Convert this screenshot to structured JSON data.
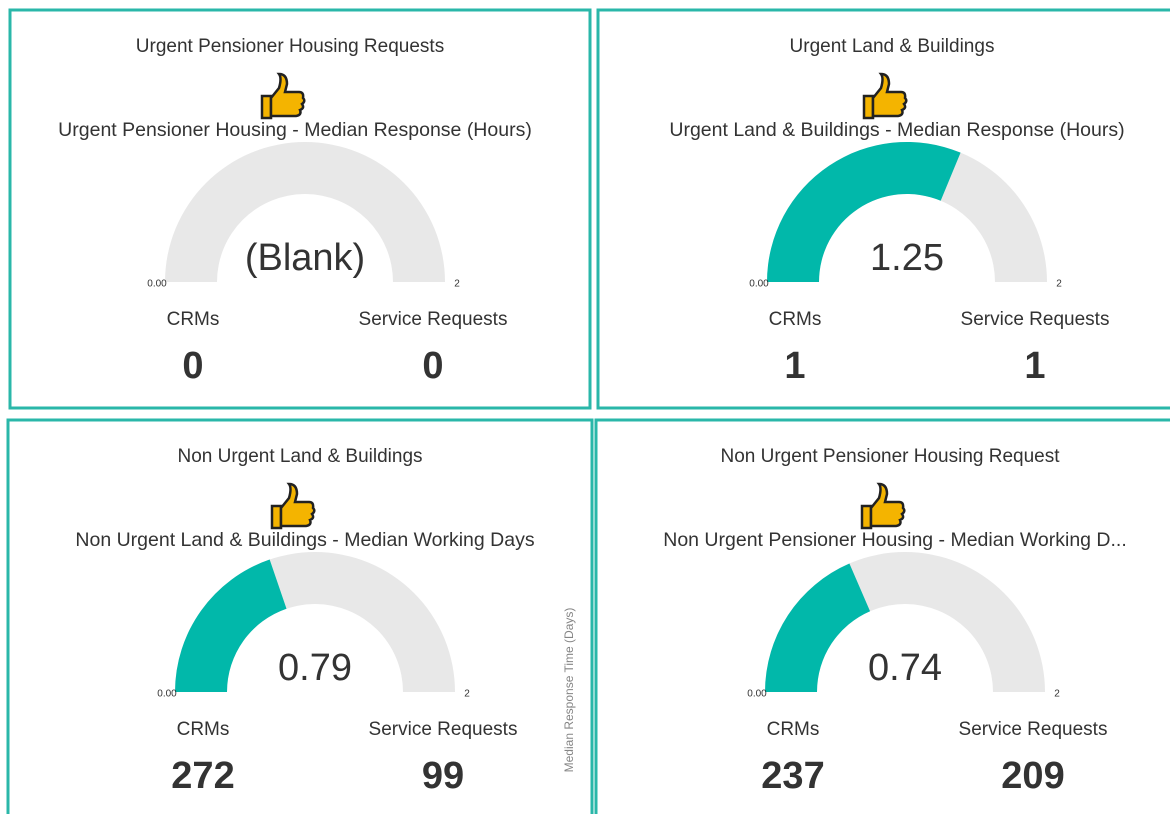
{
  "chart_data": [
    {
      "type": "gauge",
      "title": "Urgent Pensioner Housing Requests",
      "subtitle": "Urgent Pensioner Housing - Median Response (Hours)",
      "value": null,
      "value_label": "(Blank)",
      "min": {
        "value": 0,
        "label": "0.00"
      },
      "max": 2,
      "color": "#01b8aa",
      "cards": [
        {
          "label": "CRMs",
          "value": 0
        },
        {
          "label": "Service Requests",
          "value": 0
        }
      ]
    },
    {
      "type": "gauge",
      "title": "Urgent Land & Buildings",
      "subtitle": "Urgent Land & Buildings - Median Response (Hours)",
      "value": 1.25,
      "min": {
        "value": 0,
        "label": "0.00"
      },
      "max": 2,
      "color": "#01b8aa",
      "cards": [
        {
          "label": "CRMs",
          "value": 1
        },
        {
          "label": "Service Requests",
          "value": 1
        }
      ]
    },
    {
      "type": "gauge",
      "title": "Non Urgent Land & Buildings",
      "subtitle": "Non Urgent Land & Buildings - Median Working Days",
      "value": 0.79,
      "min": {
        "value": 0,
        "label": "0.00"
      },
      "max": 2,
      "color": "#01b8aa",
      "annotation": "Median Response Time (Days)",
      "cards": [
        {
          "label": "CRMs",
          "value": 272
        },
        {
          "label": "Service Requests",
          "value": 99
        }
      ]
    },
    {
      "type": "gauge",
      "title": "Non Urgent Pensioner Housing Request",
      "subtitle": "Non Urgent Pensioner Housing - Median Working D...",
      "value": 0.74,
      "min": {
        "value": 0,
        "label": "0.00"
      },
      "max": 2,
      "color": "#01b8aa",
      "cards": [
        {
          "label": "CRMs",
          "value": 237
        },
        {
          "label": "Service Requests",
          "value": 209
        }
      ]
    }
  ]
}
